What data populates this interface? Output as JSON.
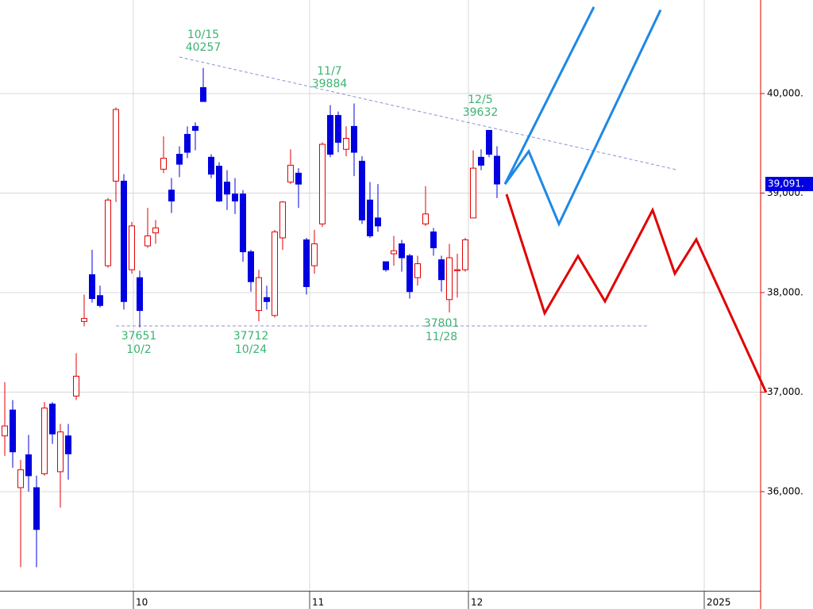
{
  "chart_data": {
    "type": "candlestick",
    "xlim": [
      -0.6,
      95.2
    ],
    "ylim": [
      35000,
      40940
    ],
    "yticks": [
      {
        "value": 36000,
        "label": "36,000."
      },
      {
        "value": 37000,
        "label": "37,000."
      },
      {
        "value": 38000,
        "label": "38,000."
      },
      {
        "value": 39000,
        "label": "39,000."
      },
      {
        "value": 40000,
        "label": "40,000."
      }
    ],
    "xticks": [
      {
        "value": 16.2,
        "label": "10"
      },
      {
        "value": 38.4,
        "label": "11"
      },
      {
        "value": 58.4,
        "label": "12"
      },
      {
        "value": 88.1,
        "label": "2025"
      }
    ],
    "grid": true,
    "up_color": "#e00000",
    "down_color": "#0000e0",
    "open": [
      36560,
      36820,
      36040,
      36370,
      36040,
      36180,
      36880,
      36200,
      36560,
      36960,
      37710,
      38180,
      37970,
      38270,
      39120,
      39120,
      38230,
      38150,
      38470,
      38600,
      39240,
      39030,
      39390,
      39590,
      39670,
      40060,
      39360,
      39270,
      39110,
      38990,
      38990,
      38410,
      37820,
      37950,
      37770,
      38550,
      39110,
      39200,
      38530,
      38270,
      38690,
      39780,
      39780,
      39440,
      39670,
      39320,
      38930,
      38750,
      38310,
      38390,
      38490,
      38370,
      38150,
      38690,
      38610,
      38330,
      37930,
      38220,
      38230,
      38750,
      39360,
      39630,
      39370
    ],
    "high": [
      37100,
      36920,
      36320,
      36570,
      36160,
      36900,
      36900,
      36680,
      36680,
      37390,
      37980,
      38430,
      38070,
      38950,
      39860,
      39190,
      38710,
      38220,
      38850,
      38730,
      39570,
      39150,
      39470,
      39670,
      39710,
      40257,
      39390,
      39310,
      39230,
      39150,
      39030,
      38430,
      38230,
      38070,
      38630,
      38920,
      39440,
      39250,
      38550,
      38630,
      39510,
      39884,
      39820,
      39670,
      39900,
      39370,
      39110,
      39090,
      38310,
      38570,
      38530,
      38390,
      38370,
      39070,
      38650,
      38370,
      38490,
      38390,
      38550,
      39430,
      39440,
      39632,
      39470
    ],
    "low": [
      36360,
      36240,
      35240,
      36000,
      35240,
      36160,
      36480,
      35840,
      36120,
      36920,
      37660,
      37900,
      37850,
      38250,
      38910,
      37830,
      38190,
      37651,
      38450,
      38490,
      39200,
      38800,
      39160,
      39350,
      39430,
      39920,
      39150,
      38910,
      38830,
      38790,
      38310,
      38010,
      37712,
      37830,
      37750,
      38430,
      39090,
      38850,
      37980,
      38190,
      38660,
      39360,
      39410,
      39370,
      39170,
      38690,
      38550,
      38610,
      38210,
      38270,
      38210,
      37940,
      38070,
      38670,
      38370,
      38010,
      37801,
      37950,
      38210,
      38750,
      39230,
      39360,
      38950
    ],
    "close": [
      36660,
      36400,
      36220,
      36160,
      35620,
      36840,
      36580,
      36600,
      36380,
      37160,
      37740,
      37940,
      37870,
      38930,
      39840,
      37910,
      38670,
      37820,
      38570,
      38650,
      39350,
      38920,
      39290,
      39410,
      39630,
      39920,
      39190,
      38920,
      38990,
      38920,
      38410,
      38110,
      38150,
      37910,
      38610,
      38910,
      39280,
      39090,
      38060,
      38490,
      39490,
      39390,
      39510,
      39550,
      39410,
      38730,
      38570,
      38670,
      38230,
      38420,
      38350,
      38010,
      38290,
      38790,
      38450,
      38130,
      38350,
      38230,
      38530,
      39250,
      39280,
      39390,
      39091
    ],
    "lines": [
      {
        "color": "#9090d0",
        "style": "dashed",
        "x": [
          22,
          84.6
        ],
        "values": [
          40367,
          39235
        ]
      },
      {
        "color": "#9090d0",
        "style": "dashed",
        "x": [
          14,
          81
        ],
        "values": [
          37665,
          37665
        ]
      },
      {
        "color": "#1e88e5",
        "style": "solid",
        "x": [
          63,
          74.2
        ],
        "values": [
          39090,
          40870
        ]
      },
      {
        "color": "#1e88e5",
        "style": "solid",
        "x": [
          63,
          66,
          69.8,
          82.6
        ],
        "values": [
          39090,
          39420,
          38690,
          40840
        ]
      },
      {
        "color": "#e00000",
        "style": "solid",
        "x": [
          63.2,
          68,
          72.2,
          75.6,
          81.6,
          84.4,
          87.1,
          95.9
        ],
        "values": [
          38988,
          37793,
          38367,
          37912,
          38829,
          38191,
          38534,
          36996
        ]
      }
    ],
    "annotations": [
      {
        "date": "10/15",
        "value": 40257
      },
      {
        "date": "11/7",
        "value": 39884
      },
      {
        "date": "12/5",
        "value": 39632
      },
      {
        "date": "10/2",
        "value": 37651
      },
      {
        "date": "10/24",
        "value": 37712
      },
      {
        "date": "11/28",
        "value": 37801
      }
    ],
    "last_price": {
      "value": 39091,
      "label": "39,091."
    }
  }
}
